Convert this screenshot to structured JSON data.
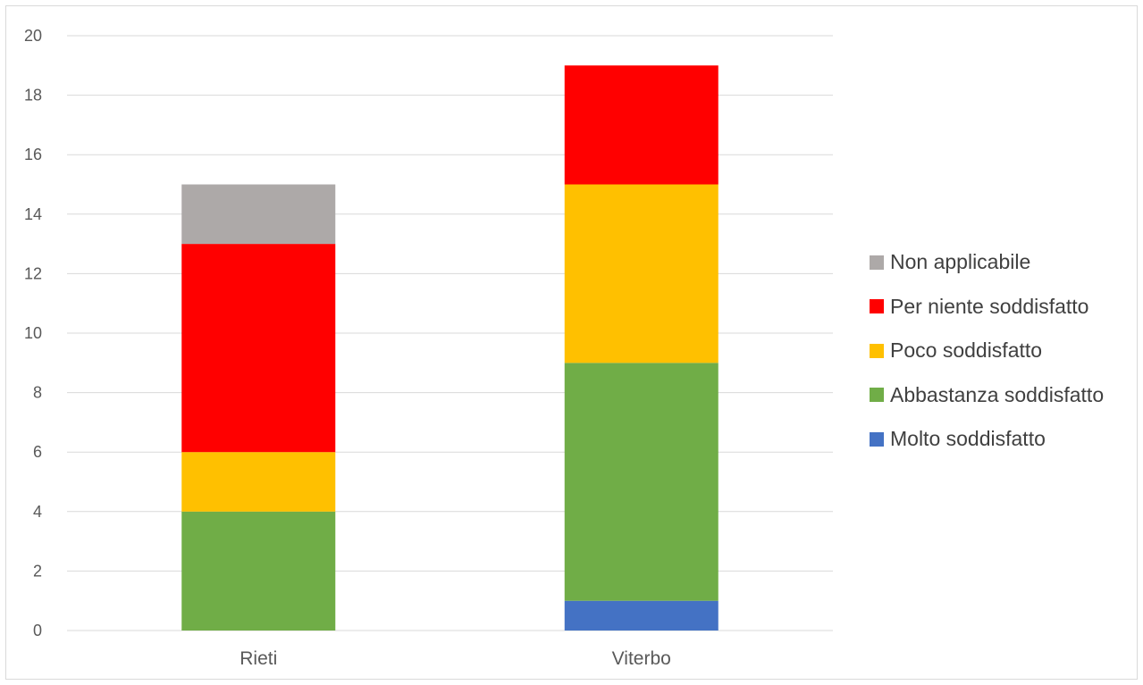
{
  "chart_data": {
    "type": "bar",
    "stacked": true,
    "categories": [
      "Rieti",
      "Viterbo"
    ],
    "series": [
      {
        "name": "Molto soddisfatto",
        "color": "#4472C4",
        "values": [
          0,
          1
        ]
      },
      {
        "name": "Abbastanza soddisfatto",
        "color": "#70AD47",
        "values": [
          4,
          8
        ]
      },
      {
        "name": "Poco soddisfatto",
        "color": "#FFC000",
        "values": [
          2,
          6
        ]
      },
      {
        "name": "Per niente soddisfatto",
        "color": "#FF0000",
        "values": [
          7,
          4
        ]
      },
      {
        "name": "Non applicabile",
        "color": "#ADA9A8",
        "values": [
          2,
          0
        ]
      }
    ],
    "ylim": [
      0,
      20
    ],
    "yticks": [
      "0",
      "2",
      "4",
      "6",
      "8",
      "10",
      "12",
      "14",
      "16",
      "18",
      "20"
    ],
    "grid": true,
    "legend_position": "right",
    "title": "",
    "xlabel": "",
    "ylabel": ""
  }
}
